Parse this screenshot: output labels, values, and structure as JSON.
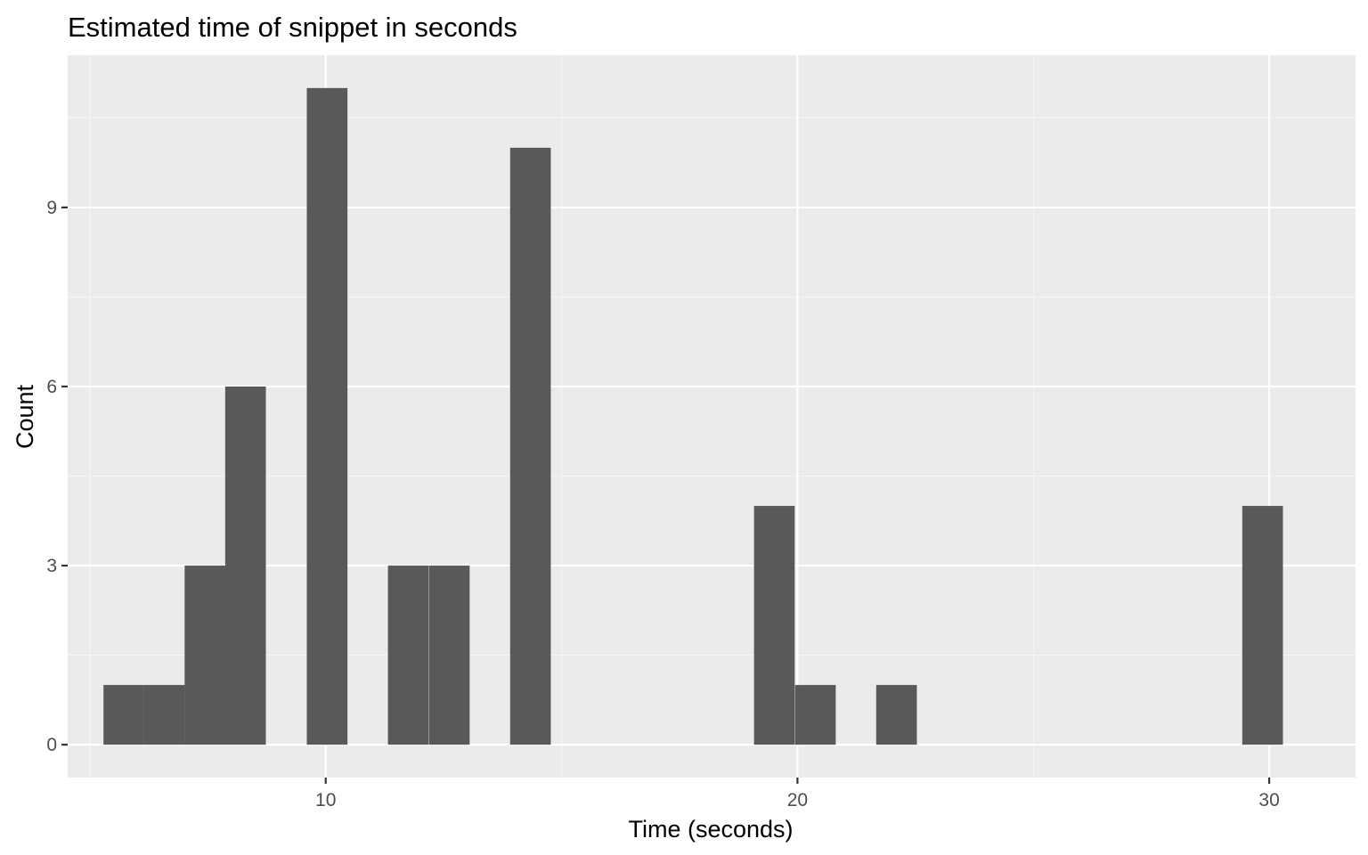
{
  "chart_data": {
    "type": "bar",
    "title": "Estimated time of snippet in seconds",
    "xlabel": "Time (seconds)",
    "ylabel": "Count",
    "xlim": [
      4.53,
      31.83
    ],
    "ylim": [
      -0.55,
      11.55
    ],
    "x_ticks": [
      10,
      20,
      30
    ],
    "y_ticks": [
      0,
      3,
      6,
      9
    ],
    "x_tick_labels": [
      "10",
      "20",
      "30"
    ],
    "y_tick_labels": [
      "0",
      "3",
      "6",
      "9"
    ],
    "bin_width": 0.862,
    "bins": [
      {
        "x": 5.72,
        "count": 1
      },
      {
        "x": 6.58,
        "count": 1
      },
      {
        "x": 7.44,
        "count": 3
      },
      {
        "x": 8.3,
        "count": 6
      },
      {
        "x": 9.17,
        "count": 0
      },
      {
        "x": 10.03,
        "count": 11
      },
      {
        "x": 10.89,
        "count": 0
      },
      {
        "x": 11.75,
        "count": 3
      },
      {
        "x": 12.62,
        "count": 3
      },
      {
        "x": 13.48,
        "count": 0
      },
      {
        "x": 14.34,
        "count": 10
      },
      {
        "x": 15.2,
        "count": 0
      },
      {
        "x": 16.06,
        "count": 0
      },
      {
        "x": 16.93,
        "count": 0
      },
      {
        "x": 17.79,
        "count": 0
      },
      {
        "x": 18.65,
        "count": 0
      },
      {
        "x": 19.51,
        "count": 4
      },
      {
        "x": 20.38,
        "count": 1
      },
      {
        "x": 21.24,
        "count": 0
      },
      {
        "x": 22.1,
        "count": 1
      },
      {
        "x": 22.96,
        "count": 0
      },
      {
        "x": 23.83,
        "count": 0
      },
      {
        "x": 24.69,
        "count": 0
      },
      {
        "x": 25.55,
        "count": 0
      },
      {
        "x": 26.41,
        "count": 0
      },
      {
        "x": 27.27,
        "count": 0
      },
      {
        "x": 28.14,
        "count": 0
      },
      {
        "x": 29.0,
        "count": 0
      },
      {
        "x": 29.86,
        "count": 4
      }
    ],
    "grid": true,
    "colors": {
      "panel_background": "#EBEBEB",
      "grid_major": "#FFFFFF",
      "grid_minor": "#F5F5F5",
      "bar_fill": "#595959",
      "tick_label": "#4D4D4D",
      "text": "#000000"
    }
  }
}
